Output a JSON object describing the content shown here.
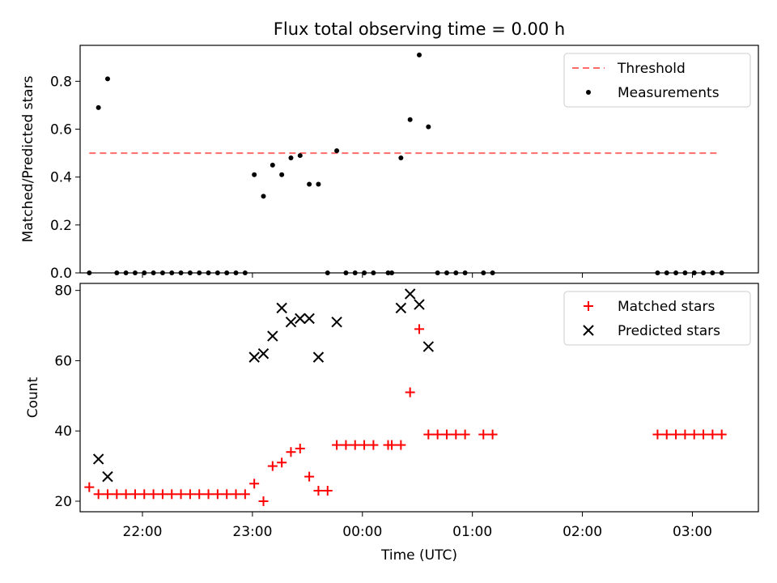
{
  "title": "Flux total observing time = 0.00 h",
  "xlabel": "Time (UTC)",
  "colors": {
    "threshold": "#ff6b6b",
    "measurement": "#000000",
    "matched": "#ff0000",
    "predicted": "#000000"
  },
  "chart_data": [
    {
      "type": "scatter",
      "ylabel": "Matched/Predicted stars",
      "xlim": [
        "21:26",
        "03:36"
      ],
      "ylim": [
        0,
        0.95
      ],
      "yticks": [
        "0.0",
        "0.2",
        "0.4",
        "0.6",
        "0.8"
      ],
      "xticks": [
        "22:00",
        "23:00",
        "00:00",
        "01:00",
        "02:00",
        "03:00"
      ],
      "legend": {
        "position": "top-right",
        "entries": [
          "Threshold",
          "Measurements"
        ]
      },
      "threshold": {
        "name": "Threshold",
        "y": 0.5,
        "x": [
          "21:31",
          "03:15"
        ]
      },
      "series": [
        {
          "name": "Measurements",
          "points": [
            [
              "21:31",
              0.0
            ],
            [
              "21:36",
              0.69
            ],
            [
              "21:41",
              0.81
            ],
            [
              "21:46",
              0.0
            ],
            [
              "21:51",
              0.0
            ],
            [
              "21:56",
              0.0
            ],
            [
              "22:01",
              0.0
            ],
            [
              "22:06",
              0.0
            ],
            [
              "22:11",
              0.0
            ],
            [
              "22:16",
              0.0
            ],
            [
              "22:21",
              0.0
            ],
            [
              "22:26",
              0.0
            ],
            [
              "22:31",
              0.0
            ],
            [
              "22:36",
              0.0
            ],
            [
              "22:41",
              0.0
            ],
            [
              "22:46",
              0.0
            ],
            [
              "22:51",
              0.0
            ],
            [
              "22:56",
              0.0
            ],
            [
              "23:01",
              0.41
            ],
            [
              "23:06",
              0.32
            ],
            [
              "23:11",
              0.45
            ],
            [
              "23:16",
              0.41
            ],
            [
              "23:21",
              0.48
            ],
            [
              "23:26",
              0.49
            ],
            [
              "23:31",
              0.37
            ],
            [
              "23:36",
              0.37
            ],
            [
              "23:41",
              0.0
            ],
            [
              "23:46",
              0.51
            ],
            [
              "23:51",
              0.0
            ],
            [
              "23:56",
              0.0
            ],
            [
              "00:01",
              0.0
            ],
            [
              "00:06",
              0.0
            ],
            [
              "00:14",
              0.0
            ],
            [
              "00:16",
              0.0
            ],
            [
              "00:21",
              0.48
            ],
            [
              "00:26",
              0.64
            ],
            [
              "00:31",
              0.91
            ],
            [
              "00:36",
              0.61
            ],
            [
              "00:41",
              0.0
            ],
            [
              "00:46",
              0.0
            ],
            [
              "00:51",
              0.0
            ],
            [
              "00:56",
              0.0
            ],
            [
              "01:06",
              0.0
            ],
            [
              "01:11",
              0.0
            ],
            [
              "02:41",
              0.0
            ],
            [
              "02:46",
              0.0
            ],
            [
              "02:51",
              0.0
            ],
            [
              "02:56",
              0.0
            ],
            [
              "03:01",
              0.0
            ],
            [
              "03:06",
              0.0
            ],
            [
              "03:11",
              0.0
            ],
            [
              "03:16",
              0.0
            ]
          ]
        }
      ]
    },
    {
      "type": "scatter",
      "ylabel": "Count",
      "xlim": [
        "21:26",
        "03:36"
      ],
      "ylim": [
        17,
        82
      ],
      "yticks": [
        "20",
        "40",
        "60",
        "80"
      ],
      "xticks": [
        "22:00",
        "23:00",
        "00:00",
        "01:00",
        "02:00",
        "03:00"
      ],
      "legend": {
        "position": "top-right",
        "entries": [
          "Matched stars",
          "Predicted stars"
        ]
      },
      "series": [
        {
          "name": "Matched stars",
          "marker": "plus",
          "points": [
            [
              "21:31",
              24
            ],
            [
              "21:36",
              22
            ],
            [
              "21:41",
              22
            ],
            [
              "21:46",
              22
            ],
            [
              "21:51",
              22
            ],
            [
              "21:56",
              22
            ],
            [
              "22:01",
              22
            ],
            [
              "22:06",
              22
            ],
            [
              "22:11",
              22
            ],
            [
              "22:16",
              22
            ],
            [
              "22:21",
              22
            ],
            [
              "22:26",
              22
            ],
            [
              "22:31",
              22
            ],
            [
              "22:36",
              22
            ],
            [
              "22:41",
              22
            ],
            [
              "22:46",
              22
            ],
            [
              "22:51",
              22
            ],
            [
              "22:56",
              22
            ],
            [
              "23:01",
              25
            ],
            [
              "23:06",
              20
            ],
            [
              "23:11",
              30
            ],
            [
              "23:16",
              31
            ],
            [
              "23:21",
              34
            ],
            [
              "23:26",
              35
            ],
            [
              "23:31",
              27
            ],
            [
              "23:36",
              23
            ],
            [
              "23:41",
              23
            ],
            [
              "23:46",
              36
            ],
            [
              "23:51",
              36
            ],
            [
              "23:56",
              36
            ],
            [
              "00:01",
              36
            ],
            [
              "00:06",
              36
            ],
            [
              "00:14",
              36
            ],
            [
              "00:16",
              36
            ],
            [
              "00:21",
              36
            ],
            [
              "00:26",
              51
            ],
            [
              "00:31",
              69
            ],
            [
              "00:36",
              39
            ],
            [
              "00:41",
              39
            ],
            [
              "00:46",
              39
            ],
            [
              "00:51",
              39
            ],
            [
              "00:56",
              39
            ],
            [
              "01:06",
              39
            ],
            [
              "01:11",
              39
            ],
            [
              "02:41",
              39
            ],
            [
              "02:46",
              39
            ],
            [
              "02:51",
              39
            ],
            [
              "02:56",
              39
            ],
            [
              "03:01",
              39
            ],
            [
              "03:06",
              39
            ],
            [
              "03:11",
              39
            ],
            [
              "03:16",
              39
            ]
          ]
        },
        {
          "name": "Predicted stars",
          "marker": "x",
          "points": [
            [
              "21:36",
              32
            ],
            [
              "21:41",
              27
            ],
            [
              "23:01",
              61
            ],
            [
              "23:06",
              62
            ],
            [
              "23:11",
              67
            ],
            [
              "23:16",
              75
            ],
            [
              "23:21",
              71
            ],
            [
              "23:26",
              72
            ],
            [
              "23:31",
              72
            ],
            [
              "23:36",
              61
            ],
            [
              "23:46",
              71
            ],
            [
              "00:21",
              75
            ],
            [
              "00:26",
              79
            ],
            [
              "00:31",
              76
            ],
            [
              "00:36",
              64
            ]
          ]
        }
      ]
    }
  ]
}
